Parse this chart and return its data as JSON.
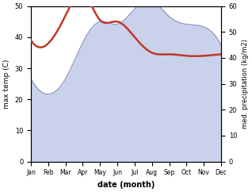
{
  "months": [
    "Jan",
    "Feb",
    "Mar",
    "Apr",
    "May",
    "Jun",
    "Jul",
    "Aug",
    "Sep",
    "Oct",
    "Nov",
    "Dec"
  ],
  "month_indices": [
    0,
    1,
    2,
    3,
    4,
    5,
    6,
    7,
    8,
    9,
    10,
    11
  ],
  "max_temp": [
    39.0,
    38.0,
    47.0,
    54.0,
    45.5,
    45.0,
    40.0,
    35.0,
    34.5,
    34.0,
    34.0,
    34.5
  ],
  "precipitation": [
    32,
    26,
    32,
    46,
    54,
    53,
    59,
    62,
    56,
    53,
    52,
    45
  ],
  "temp_color": "#c0392b",
  "precip_fill_color": "#c5cce8",
  "precip_line_color": "#8890bb",
  "xlabel": "date (month)",
  "ylabel_left": "max temp (C)",
  "ylabel_right": "med. precipitation (kg/m2)",
  "ylim_left": [
    0,
    50
  ],
  "ylim_right": [
    0,
    60
  ],
  "yticks_left": [
    0,
    10,
    20,
    30,
    40,
    50
  ],
  "yticks_right": [
    0,
    10,
    20,
    30,
    40,
    50,
    60
  ],
  "background_color": "#ffffff",
  "fig_width": 3.18,
  "fig_height": 2.42,
  "dpi": 100
}
